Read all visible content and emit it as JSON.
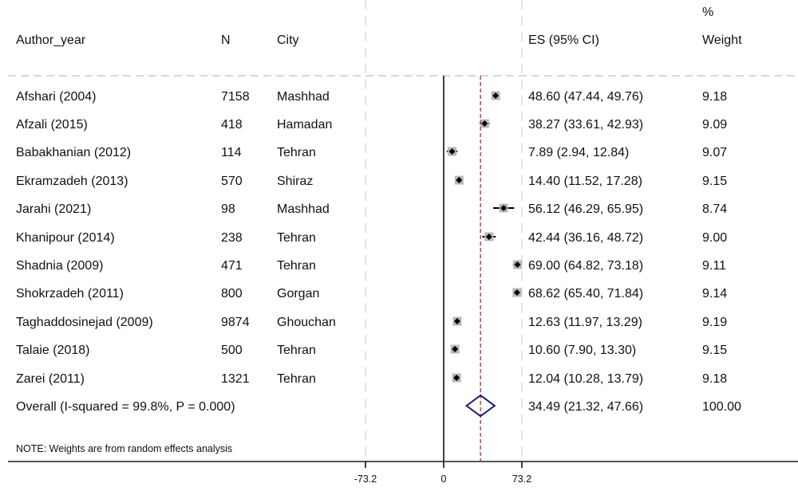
{
  "chart_data": {
    "type": "forest",
    "headers": {
      "author": "Author_year",
      "n": "N",
      "city": "City",
      "es": "ES (95% CI)",
      "weight_top": "%",
      "weight": "Weight"
    },
    "studies": [
      {
        "author": "Afshari (2004)",
        "n": "7158",
        "city": "Mashhad",
        "es": 48.6,
        "lo": 47.44,
        "hi": 49.76,
        "es_text": "48.60 (47.44, 49.76)",
        "weight": "9.18"
      },
      {
        "author": "Afzali (2015)",
        "n": "418",
        "city": "Hamadan",
        "es": 38.27,
        "lo": 33.61,
        "hi": 42.93,
        "es_text": "38.27 (33.61, 42.93)",
        "weight": "9.09"
      },
      {
        "author": "Babakhanian (2012)",
        "n": "114",
        "city": "Tehran",
        "es": 7.89,
        "lo": 2.94,
        "hi": 12.84,
        "es_text": "7.89 (2.94, 12.84)",
        "weight": "9.07"
      },
      {
        "author": "Ekramzadeh (2013)",
        "n": "570",
        "city": "Shiraz",
        "es": 14.4,
        "lo": 11.52,
        "hi": 17.28,
        "es_text": "14.40 (11.52, 17.28)",
        "weight": "9.15"
      },
      {
        "author": "Jarahi (2021)",
        "n": "98",
        "city": "Mashhad",
        "es": 56.12,
        "lo": 46.29,
        "hi": 65.95,
        "es_text": "56.12 (46.29, 65.95)",
        "weight": "8.74"
      },
      {
        "author": "Khanipour (2014)",
        "n": "238",
        "city": "Tehran",
        "es": 42.44,
        "lo": 36.16,
        "hi": 48.72,
        "es_text": "42.44 (36.16, 48.72)",
        "weight": "9.00"
      },
      {
        "author": "Shadnia (2009)",
        "n": "471",
        "city": "Tehran",
        "es": 69.0,
        "lo": 64.82,
        "hi": 73.18,
        "es_text": "69.00 (64.82, 73.18)",
        "weight": "9.11"
      },
      {
        "author": "Shokrzadeh (2011)",
        "n": "800",
        "city": "Gorgan",
        "es": 68.62,
        "lo": 65.4,
        "hi": 71.84,
        "es_text": "68.62 (65.40, 71.84)",
        "weight": "9.14"
      },
      {
        "author": "Taghaddosinejad (2009)",
        "n": "9874",
        "city": "Ghouchan",
        "es": 12.63,
        "lo": 11.97,
        "hi": 13.29,
        "es_text": "12.63 (11.97, 13.29)",
        "weight": "9.19"
      },
      {
        "author": "Talaie (2018)",
        "n": "500",
        "city": "Tehran",
        "es": 10.6,
        "lo": 7.9,
        "hi": 13.3,
        "es_text": "10.60 (7.90, 13.30)",
        "weight": "9.15"
      },
      {
        "author": "Zarei (2011)",
        "n": "1321",
        "city": "Tehran",
        "es": 12.04,
        "lo": 10.28,
        "hi": 13.79,
        "es_text": "12.04 (10.28, 13.79)",
        "weight": "9.18"
      }
    ],
    "overall": {
      "label": "Overall  (I-squared = 99.8%, P = 0.000)",
      "es": 34.49,
      "lo": 21.32,
      "hi": 47.66,
      "es_text": "34.49 (21.32, 47.66)",
      "weight": "100.00"
    },
    "note": "NOTE: Weights are from random effects analysis",
    "xticks": [
      -73.2,
      0,
      73.2
    ],
    "xtick_labels": [
      "-73.2",
      "0",
      "73.2"
    ],
    "xlim": [
      -73.2,
      73.2
    ],
    "colors": {
      "overall_line": "#a0525a",
      "diamond": "#1a1a6e",
      "box": "#b8b8b8",
      "grid": "#dcdcdc"
    }
  }
}
